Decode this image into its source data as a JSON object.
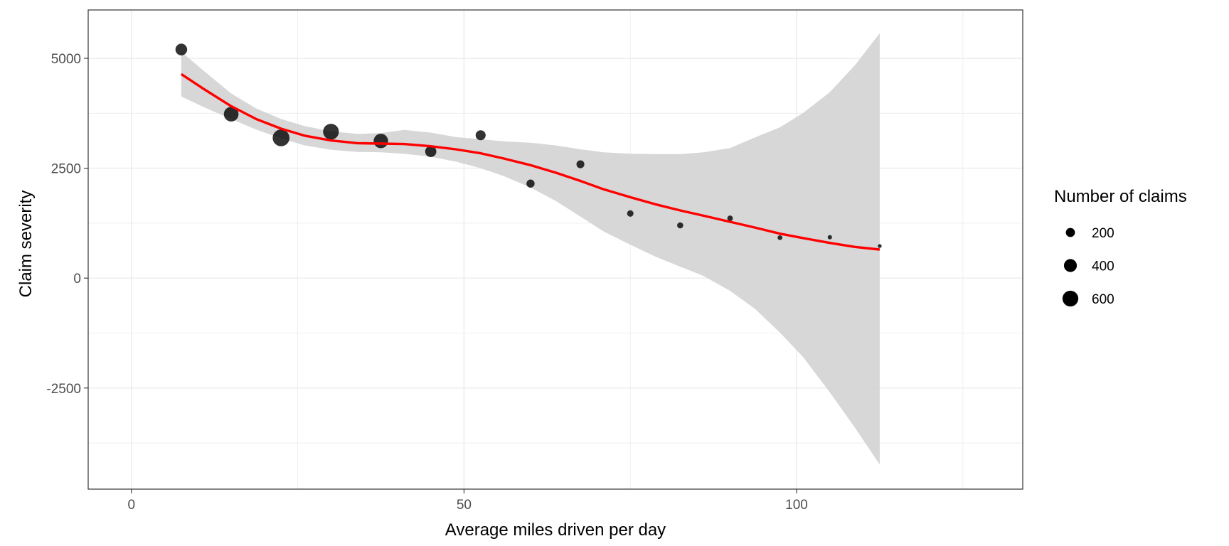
{
  "chart_data": {
    "type": "scatter",
    "xlabel": "Average miles driven per day",
    "ylabel": "Claim severity",
    "xlim": [
      -6.5,
      134
    ],
    "ylim": [
      -4800,
      6100
    ],
    "x_ticks": [
      0,
      50,
      100
    ],
    "x_tick_labels": [
      "0",
      "50",
      "100"
    ],
    "y_ticks": [
      -2500,
      0,
      2500,
      5000
    ],
    "y_tick_labels": [
      "-2500",
      "0",
      "2500",
      "5000"
    ],
    "grid": true,
    "legend_placement": "right",
    "colors": {
      "points": "#000000",
      "smooth_line": "#ff0000",
      "confidence_band": "#d3d3d3",
      "grid": "#ebebeb",
      "panel_border": "#333333"
    },
    "points": [
      {
        "x": 7.5,
        "y": 5200,
        "n": 330
      },
      {
        "x": 15,
        "y": 3730,
        "n": 520
      },
      {
        "x": 22.5,
        "y": 3190,
        "n": 680
      },
      {
        "x": 30,
        "y": 3330,
        "n": 600
      },
      {
        "x": 37.5,
        "y": 3120,
        "n": 500
      },
      {
        "x": 45,
        "y": 2880,
        "n": 300
      },
      {
        "x": 52.5,
        "y": 3250,
        "n": 240
      },
      {
        "x": 60,
        "y": 2150,
        "n": 160
      },
      {
        "x": 67.5,
        "y": 2590,
        "n": 150
      },
      {
        "x": 75,
        "y": 1470,
        "n": 100
      },
      {
        "x": 82.5,
        "y": 1200,
        "n": 90
      },
      {
        "x": 90,
        "y": 1360,
        "n": 75
      },
      {
        "x": 97.5,
        "y": 920,
        "n": 55
      },
      {
        "x": 105,
        "y": 930,
        "n": 45
      },
      {
        "x": 112.5,
        "y": 730,
        "n": 35
      }
    ],
    "smooth": {
      "name": "loess fit",
      "x": [
        7.5,
        11,
        15,
        18.75,
        22.5,
        26,
        30,
        34,
        37.5,
        41,
        45,
        48.75,
        52.5,
        56,
        60,
        63.75,
        67.5,
        71,
        75,
        78.75,
        82.5,
        86,
        90,
        93.75,
        97.5,
        101,
        105,
        108.75,
        112.5
      ],
      "y": [
        4640,
        4290,
        3910,
        3620,
        3400,
        3240,
        3130,
        3070,
        3060,
        3050,
        3000,
        2930,
        2840,
        2720,
        2570,
        2400,
        2210,
        2020,
        1840,
        1680,
        1540,
        1420,
        1280,
        1150,
        1010,
        910,
        800,
        710,
        650
      ],
      "lower": [
        4130,
        3880,
        3620,
        3380,
        3180,
        3020,
        2920,
        2870,
        2860,
        2830,
        2760,
        2650,
        2500,
        2320,
        2060,
        1760,
        1400,
        1060,
        760,
        490,
        260,
        50,
        -290,
        -700,
        -1240,
        -1800,
        -2600,
        -3400,
        -4240
      ],
      "upper": [
        5150,
        4700,
        4200,
        3860,
        3620,
        3460,
        3340,
        3280,
        3300,
        3370,
        3310,
        3210,
        3160,
        3110,
        3080,
        3020,
        2930,
        2860,
        2830,
        2820,
        2820,
        2860,
        2960,
        3200,
        3430,
        3760,
        4230,
        4840,
        5570
      ]
    },
    "legend": {
      "title": "Number of claims",
      "entries": [
        {
          "label": "200",
          "value": 200
        },
        {
          "label": "400",
          "value": 400
        },
        {
          "label": "600",
          "value": 600
        }
      ]
    }
  }
}
